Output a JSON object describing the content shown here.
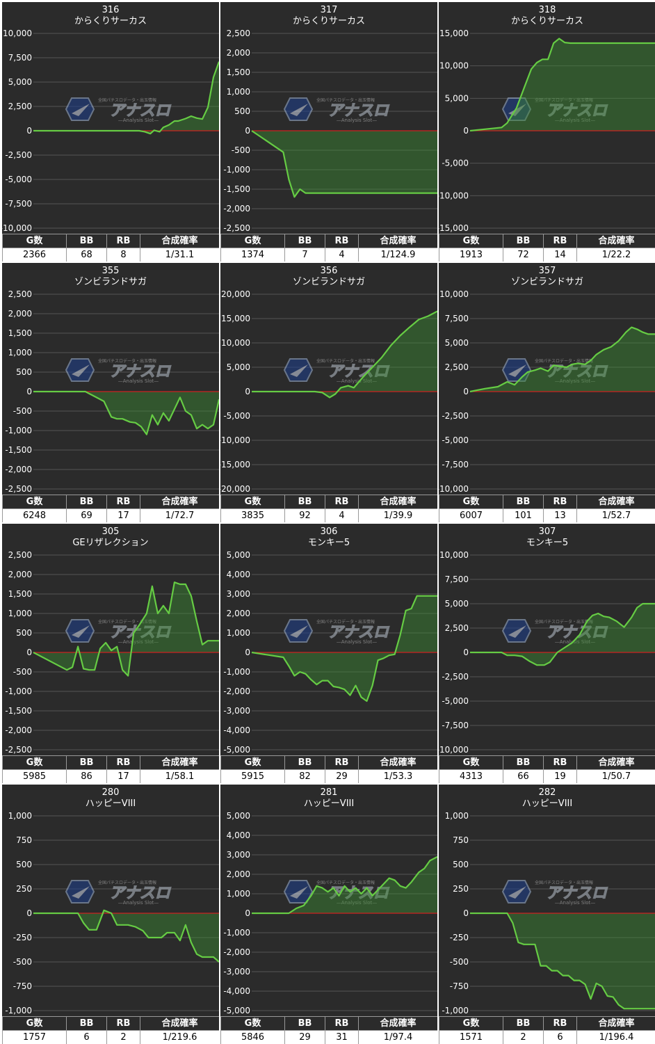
{
  "colors": {
    "background": "#2b2b2b",
    "line": "#66cc44",
    "fill": "#3c8c34",
    "zero_line": "#cc2222",
    "grid": "#555555"
  },
  "watermark": {
    "brand": "アナスロ",
    "tagline": "—Analysis Slot—",
    "small_text": "全国パチスロデータ・出玉情報"
  },
  "stats_headers": [
    "G数",
    "BB",
    "RB",
    "合成確率"
  ],
  "chart_data": [
    {
      "type": "line",
      "unit_no": "316",
      "machine": "からくりサーカス",
      "ylim": [
        -10000,
        10000
      ],
      "yticks": [
        "10,000",
        "7,500",
        "5,000",
        "2,500",
        "0",
        "-2,500",
        "-5,000",
        "-7,500",
        "-10,000"
      ],
      "x": [
        0,
        0.57,
        0.6,
        0.63,
        0.65,
        0.68,
        0.7,
        0.73,
        0.76,
        0.78,
        0.82,
        0.85,
        0.88,
        0.91,
        0.94,
        0.97,
        1.0
      ],
      "y": [
        0,
        0,
        -100,
        -300,
        50,
        -100,
        350,
        600,
        1000,
        1000,
        1250,
        1500,
        1300,
        1200,
        2400,
        5500,
        7100
      ],
      "stats": {
        "games": "2366",
        "bb": "68",
        "rb": "8",
        "prob": "1/31.1"
      }
    },
    {
      "type": "line",
      "unit_no": "317",
      "machine": "からくりサーカス",
      "ylim": [
        -2500,
        2500
      ],
      "yticks": [
        "2,500",
        "2,000",
        "1,500",
        "1,000",
        "500",
        "0",
        "-500",
        "-1,000",
        "-1,500",
        "-2,000",
        "-2,500"
      ],
      "x": [
        0,
        0.17,
        0.2,
        0.23,
        0.26,
        0.29,
        1.0
      ],
      "y": [
        0,
        -550,
        -1250,
        -1700,
        -1500,
        -1600,
        -1600
      ],
      "stats": {
        "games": "1374",
        "bb": "7",
        "rb": "4",
        "prob": "1/124.9"
      }
    },
    {
      "type": "line",
      "unit_no": "318",
      "machine": "からくりサーカス",
      "ylim": [
        -15000,
        15000
      ],
      "yticks": [
        "15,000",
        "10,000",
        "5,000",
        "0",
        "-5,000",
        "-10,000",
        "-15,000"
      ],
      "x": [
        0,
        0.17,
        0.2,
        0.25,
        0.29,
        0.33,
        0.36,
        0.39,
        0.42,
        0.45,
        0.48,
        0.51,
        0.54,
        0.57,
        0.6,
        1.0
      ],
      "y": [
        0,
        500,
        1200,
        3500,
        6500,
        9500,
        10500,
        11000,
        11000,
        13500,
        14200,
        13600,
        13500,
        13500,
        13500,
        13500
      ],
      "stats": {
        "games": "1913",
        "bb": "72",
        "rb": "14",
        "prob": "1/22.2"
      }
    },
    {
      "type": "line",
      "unit_no": "355",
      "machine": "ゾンビランドサガ",
      "ylim": [
        -2500,
        2500
      ],
      "yticks": [
        "2,500",
        "2,000",
        "1,500",
        "1,000",
        "500",
        "0",
        "-500",
        "-1,000",
        "-1,500",
        "-2,000",
        "-2,500"
      ],
      "x": [
        0,
        0.28,
        0.34,
        0.38,
        0.42,
        0.45,
        0.48,
        0.52,
        0.55,
        0.58,
        0.61,
        0.64,
        0.67,
        0.7,
        0.73,
        0.76,
        0.79,
        0.82,
        0.85,
        0.88,
        0.91,
        0.94,
        0.97,
        1.0
      ],
      "y": [
        0,
        0,
        -150,
        -250,
        -650,
        -700,
        -700,
        -780,
        -800,
        -900,
        -1100,
        -600,
        -850,
        -550,
        -750,
        -450,
        -150,
        -500,
        -600,
        -950,
        -850,
        -950,
        -850,
        -200
      ],
      "stats": {
        "games": "6248",
        "bb": "69",
        "rb": "17",
        "prob": "1/72.7"
      }
    },
    {
      "type": "line",
      "unit_no": "356",
      "machine": "ゾンビランドサガ",
      "ylim": [
        -20000,
        20000
      ],
      "yticks": [
        "20,000",
        "15,000",
        "10,000",
        "5,000",
        "0",
        "-5,000",
        "-10,000",
        "-15,000",
        "-20,000"
      ],
      "x": [
        0,
        0.34,
        0.38,
        0.42,
        0.45,
        0.48,
        0.52,
        0.55,
        0.6,
        0.65,
        0.7,
        0.75,
        0.8,
        0.85,
        0.9,
        0.95,
        1.0
      ],
      "y": [
        0,
        0,
        -200,
        -1200,
        -500,
        800,
        1200,
        800,
        3000,
        5000,
        7000,
        9500,
        11500,
        13200,
        14800,
        15500,
        16500
      ],
      "stats": {
        "games": "3835",
        "bb": "92",
        "rb": "4",
        "prob": "1/39.9"
      }
    },
    {
      "type": "line",
      "unit_no": "357",
      "machine": "ゾンビランドサガ",
      "ylim": [
        -10000,
        10000
      ],
      "yticks": [
        "10,000",
        "7,500",
        "5,000",
        "2,500",
        "0",
        "-2,500",
        "-5,000",
        "-7,500",
        "-10,000"
      ],
      "x": [
        0,
        0.08,
        0.15,
        0.2,
        0.24,
        0.28,
        0.31,
        0.35,
        0.38,
        0.42,
        0.45,
        0.48,
        0.52,
        0.55,
        0.58,
        0.62,
        0.65,
        0.68,
        0.72,
        0.76,
        0.8,
        0.84,
        0.87,
        0.9,
        0.93,
        0.96,
        1.0
      ],
      "y": [
        0,
        300,
        500,
        1000,
        700,
        1500,
        2000,
        2200,
        2400,
        2100,
        2700,
        2600,
        2500,
        2800,
        2900,
        2800,
        3200,
        3800,
        4300,
        4600,
        5200,
        6100,
        6600,
        6400,
        6100,
        5900,
        5900
      ],
      "stats": {
        "games": "6007",
        "bb": "101",
        "rb": "13",
        "prob": "1/52.7"
      }
    },
    {
      "type": "line",
      "unit_no": "305",
      "machine": "GEリザレクション",
      "ylim": [
        -2500,
        2500
      ],
      "yticks": [
        "2,500",
        "2,000",
        "1,500",
        "1,000",
        "500",
        "0",
        "-500",
        "-1,000",
        "-1,500",
        "-2,000",
        "-2,500"
      ],
      "x": [
        0,
        0.18,
        0.21,
        0.24,
        0.27,
        0.3,
        0.33,
        0.36,
        0.39,
        0.42,
        0.45,
        0.48,
        0.51,
        0.54,
        0.57,
        0.61,
        0.64,
        0.67,
        0.7,
        0.73,
        0.76,
        0.79,
        0.82,
        0.85,
        0.88,
        0.91,
        0.94,
        0.97,
        1.0
      ],
      "y": [
        0,
        -450,
        -380,
        150,
        -420,
        -450,
        -450,
        100,
        250,
        50,
        150,
        -450,
        -600,
        500,
        700,
        1000,
        1700,
        1000,
        1200,
        1000,
        1800,
        1750,
        1750,
        1450,
        800,
        200,
        300,
        300,
        300
      ],
      "stats": {
        "games": "5985",
        "bb": "86",
        "rb": "17",
        "prob": "1/58.1"
      }
    },
    {
      "type": "line",
      "unit_no": "306",
      "machine": "モンキー5",
      "ylim": [
        -5000,
        5000
      ],
      "yticks": [
        "5,000",
        "4,000",
        "3,000",
        "2,000",
        "1,000",
        "0",
        "-1,000",
        "-2,000",
        "-3,000",
        "-4,000",
        "-5,000"
      ],
      "x": [
        0,
        0.17,
        0.2,
        0.23,
        0.26,
        0.29,
        0.32,
        0.35,
        0.38,
        0.41,
        0.44,
        0.47,
        0.5,
        0.53,
        0.56,
        0.59,
        0.62,
        0.65,
        0.68,
        0.71,
        0.74,
        0.77,
        0.8,
        0.83,
        0.86,
        0.89,
        0.92,
        0.95,
        1.0
      ],
      "y": [
        0,
        -250,
        -700,
        -1200,
        -1000,
        -1100,
        -1400,
        -1650,
        -1450,
        -1450,
        -1750,
        -1800,
        -1900,
        -2200,
        -1700,
        -2300,
        -2500,
        -1700,
        -400,
        -300,
        -150,
        -100,
        900,
        2150,
        2250,
        2900,
        2900,
        2900,
        2900
      ],
      "stats": {
        "games": "5915",
        "bb": "82",
        "rb": "29",
        "prob": "1/53.3"
      }
    },
    {
      "type": "line",
      "unit_no": "307",
      "machine": "モンキー5",
      "ylim": [
        -10000,
        10000
      ],
      "yticks": [
        "10,000",
        "7,500",
        "5,000",
        "2,500",
        "0",
        "-2,500",
        "-5,000",
        "-7,500",
        "-10,000"
      ],
      "x": [
        0,
        0.17,
        0.2,
        0.24,
        0.28,
        0.32,
        0.36,
        0.4,
        0.43,
        0.47,
        0.51,
        0.55,
        0.59,
        0.63,
        0.66,
        0.69,
        0.72,
        0.75,
        0.79,
        0.83,
        0.87,
        0.9,
        0.93,
        0.96,
        1.0
      ],
      "y": [
        0,
        0,
        -300,
        -300,
        -400,
        -900,
        -1300,
        -1300,
        -1000,
        0,
        500,
        1000,
        1800,
        3200,
        3800,
        4000,
        3700,
        3600,
        3200,
        2600,
        3600,
        4600,
        5000,
        5000,
        5000
      ],
      "stats": {
        "games": "4313",
        "bb": "66",
        "rb": "19",
        "prob": "1/50.7"
      }
    },
    {
      "type": "line",
      "unit_no": "280",
      "machine": "ハッピーVIII",
      "ylim": [
        -1000,
        1000
      ],
      "yticks": [
        "1,000",
        "750",
        "500",
        "250",
        "0",
        "-250",
        "-500",
        "-750",
        "-1,000"
      ],
      "x": [
        0,
        0.24,
        0.27,
        0.3,
        0.34,
        0.38,
        0.42,
        0.45,
        0.48,
        0.51,
        0.55,
        0.59,
        0.62,
        0.65,
        0.69,
        0.72,
        0.76,
        0.79,
        0.82,
        0.85,
        0.88,
        0.91,
        0.94,
        0.97,
        1.0
      ],
      "y": [
        0,
        0,
        -100,
        -170,
        -170,
        30,
        0,
        -120,
        -120,
        -120,
        -140,
        -180,
        -250,
        -250,
        -250,
        -200,
        -200,
        -280,
        -120,
        -300,
        -420,
        -450,
        -450,
        -450,
        -500
      ],
      "stats": {
        "games": "1757",
        "bb": "6",
        "rb": "2",
        "prob": "1/219.6"
      }
    },
    {
      "type": "line",
      "unit_no": "281",
      "machine": "ハッピーVIII",
      "ylim": [
        -5000,
        5000
      ],
      "yticks": [
        "5,000",
        "4,000",
        "3,000",
        "2,000",
        "1,000",
        "0",
        "-1,000",
        "-2,000",
        "-3,000",
        "-4,000",
        "-5,000"
      ],
      "x": [
        0,
        0.2,
        0.24,
        0.28,
        0.32,
        0.35,
        0.38,
        0.41,
        0.44,
        0.47,
        0.5,
        0.53,
        0.56,
        0.59,
        0.62,
        0.65,
        0.68,
        0.71,
        0.74,
        0.77,
        0.8,
        0.83,
        0.86,
        0.9,
        0.93,
        0.96,
        1.0
      ],
      "y": [
        0,
        0,
        250,
        400,
        900,
        1400,
        1300,
        1100,
        1300,
        900,
        1400,
        1100,
        1300,
        1000,
        1300,
        900,
        1200,
        1500,
        1800,
        1700,
        1400,
        1300,
        1600,
        2100,
        2300,
        2700,
        2900
      ],
      "stats": {
        "games": "5846",
        "bb": "29",
        "rb": "31",
        "prob": "1/97.4"
      }
    },
    {
      "type": "line",
      "unit_no": "282",
      "machine": "ハッピーVIII",
      "ylim": [
        -1000,
        1000
      ],
      "yticks": [
        "1,000",
        "750",
        "500",
        "250",
        "0",
        "-250",
        "-500",
        "-750",
        "-1,000"
      ],
      "x": [
        0,
        0.2,
        0.23,
        0.26,
        0.29,
        0.32,
        0.35,
        0.38,
        0.41,
        0.44,
        0.47,
        0.5,
        0.53,
        0.56,
        0.59,
        0.62,
        0.65,
        0.68,
        0.71,
        0.74,
        0.77,
        0.8,
        0.83,
        0.86,
        0.89,
        0.92,
        0.95,
        1.0
      ],
      "y": [
        0,
        0,
        -100,
        -300,
        -320,
        -320,
        -320,
        -540,
        -540,
        -590,
        -590,
        -640,
        -640,
        -690,
        -690,
        -730,
        -880,
        -720,
        -750,
        -850,
        -860,
        -940,
        -980,
        -980,
        -980,
        -980,
        -980,
        -980
      ],
      "stats": {
        "games": "1571",
        "bb": "2",
        "rb": "6",
        "prob": "1/196.4"
      }
    }
  ]
}
